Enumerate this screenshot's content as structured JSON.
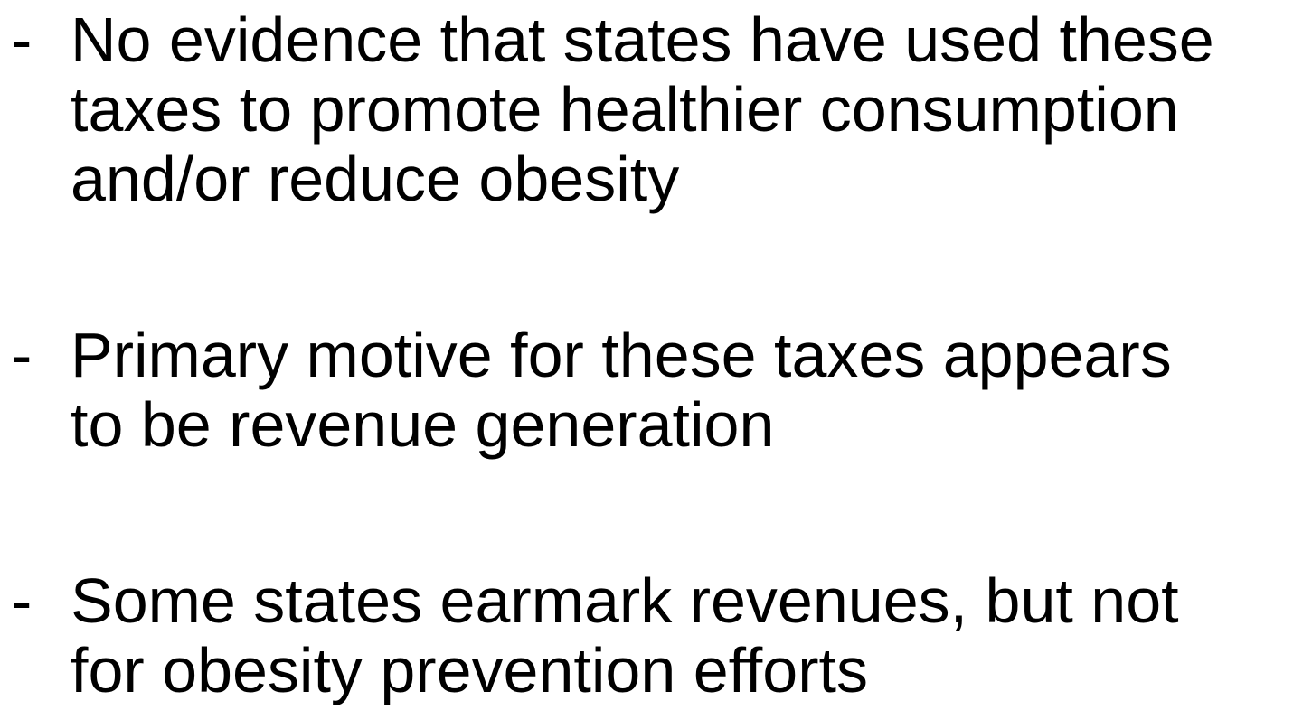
{
  "bullets": [
    {
      "marker": "-",
      "lines": [
        "No evidence that states have used these",
        "taxes to promote healthier consumption",
        "and/or reduce obesity"
      ]
    },
    {
      "marker": "-",
      "lines": [
        "Primary motive for these taxes appears",
        "to be revenue generation"
      ]
    },
    {
      "marker": "-",
      "lines": [
        "Some states earmark revenues, but not",
        "for obesity prevention efforts"
      ]
    }
  ]
}
